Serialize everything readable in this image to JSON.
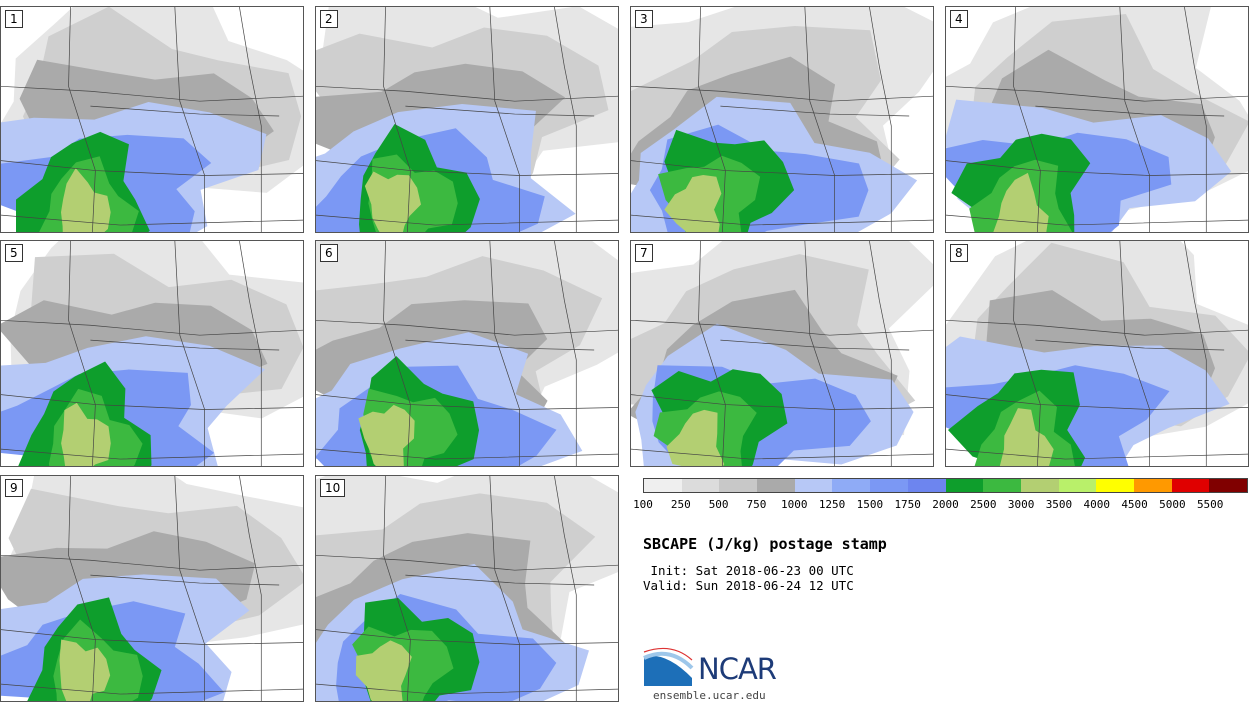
{
  "panels": [
    "1",
    "2",
    "3",
    "4",
    "5",
    "6",
    "7",
    "8",
    "9",
    "10"
  ],
  "title": "SBCAPE (J/kg) postage stamp",
  "init": " Init: Sat 2018-06-23 00 UTC",
  "valid": "Valid: Sun 2018-06-24 12 UTC",
  "colorbar": {
    "colors": [
      "#efefef",
      "#dcdcdc",
      "#c8c8c8",
      "#aaaaaa",
      "#b7c8f6",
      "#8fabf6",
      "#7b98f4",
      "#6d85ef",
      "#0e9e2c",
      "#3cb940",
      "#b3cf72",
      "#b9f06a",
      "#ffff00",
      "#ff9900",
      "#e00000",
      "#800000"
    ],
    "ticks": [
      "100",
      "250",
      "500",
      "750",
      "1000",
      "1250",
      "1500",
      "1750",
      "2000",
      "2500",
      "3000",
      "3500",
      "4000",
      "4500",
      "5000",
      "5500"
    ]
  },
  "logo": {
    "name": "NCAR",
    "site": "ensemble.ucar.edu"
  }
}
